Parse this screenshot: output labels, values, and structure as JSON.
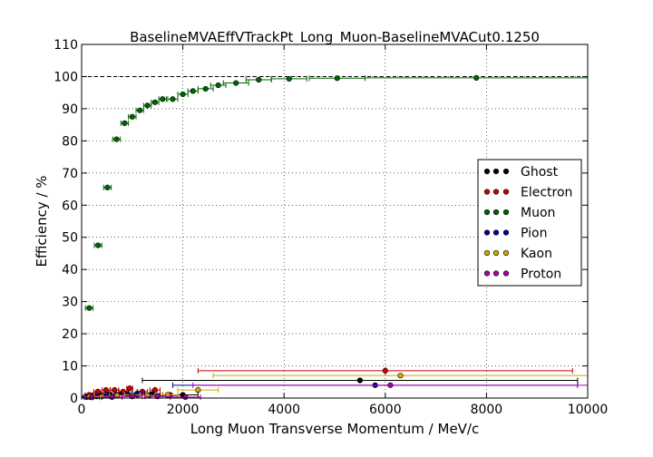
{
  "chart_data": {
    "type": "scatter",
    "title": "BaselineMVAEffVTrackPt_Long_Muon-BaselineMVACut0.1250",
    "xlabel": "Long Muon Transverse Momentum / MeV/c",
    "ylabel": "Efficiency / %",
    "xlim": [
      0,
      10000
    ],
    "ylim": [
      0,
      110
    ],
    "xticks": [
      0,
      2000,
      4000,
      6000,
      8000,
      10000
    ],
    "yticks": [
      0,
      10,
      20,
      30,
      40,
      50,
      60,
      70,
      80,
      90,
      100,
      110
    ],
    "grid": true,
    "reference_line": 100,
    "legend_position": "center-right",
    "series": [
      {
        "name": "Ghost",
        "color": "#000000",
        "points": [
          {
            "x": 75,
            "y": 0.5,
            "xerr": 75,
            "yerr": 0.3
          },
          {
            "x": 200,
            "y": 0.8,
            "xerr": 50,
            "yerr": 0.3
          },
          {
            "x": 350,
            "y": 1.0,
            "xerr": 75,
            "yerr": 0.3
          },
          {
            "x": 550,
            "y": 1.2,
            "xerr": 100,
            "yerr": 0.4
          },
          {
            "x": 800,
            "y": 1.5,
            "xerr": 125,
            "yerr": 0.5
          },
          {
            "x": 1100,
            "y": 1.0,
            "xerr": 150,
            "yerr": 0.5
          },
          {
            "x": 1400,
            "y": 1.3,
            "xerr": 150,
            "yerr": 0.6
          },
          {
            "x": 2000,
            "y": 1.0,
            "xerr": 300,
            "yerr": 0.6
          },
          {
            "x": 5500,
            "y": 5.5,
            "xerr": 4300,
            "yerr": 0.8
          }
        ]
      },
      {
        "name": "Electron",
        "color": "#cc0000",
        "points": [
          {
            "x": 150,
            "y": 1.0,
            "xerr": 75,
            "yerr": 0.5
          },
          {
            "x": 320,
            "y": 2.0,
            "xerr": 80,
            "yerr": 0.8
          },
          {
            "x": 480,
            "y": 2.5,
            "xerr": 80,
            "yerr": 0.8
          },
          {
            "x": 650,
            "y": 2.5,
            "xerr": 80,
            "yerr": 0.8
          },
          {
            "x": 820,
            "y": 2.0,
            "xerr": 80,
            "yerr": 0.8
          },
          {
            "x": 950,
            "y": 3.0,
            "xerr": 60,
            "yerr": 1.0
          },
          {
            "x": 1200,
            "y": 2.0,
            "xerr": 100,
            "yerr": 0.8
          },
          {
            "x": 1450,
            "y": 2.5,
            "xerr": 100,
            "yerr": 1.0
          },
          {
            "x": 1750,
            "y": 1.0,
            "xerr": 150,
            "yerr": 0.8
          },
          {
            "x": 6000,
            "y": 8.5,
            "xerr": 3700,
            "yerr": 1.2
          }
        ]
      },
      {
        "name": "Muon",
        "color": "#006600",
        "points": [
          {
            "x": 150,
            "y": 28.0,
            "xerr": 75,
            "yerr": 0.6
          },
          {
            "x": 325,
            "y": 47.5,
            "xerr": 75,
            "yerr": 0.7
          },
          {
            "x": 510,
            "y": 65.5,
            "xerr": 75,
            "yerr": 0.7
          },
          {
            "x": 690,
            "y": 80.5,
            "xerr": 75,
            "yerr": 0.6
          },
          {
            "x": 850,
            "y": 85.5,
            "xerr": 75,
            "yerr": 0.5
          },
          {
            "x": 1000,
            "y": 87.5,
            "xerr": 75,
            "yerr": 0.5
          },
          {
            "x": 1150,
            "y": 89.5,
            "xerr": 75,
            "yerr": 0.5
          },
          {
            "x": 1300,
            "y": 91.0,
            "xerr": 75,
            "yerr": 0.5
          },
          {
            "x": 1450,
            "y": 92.0,
            "xerr": 75,
            "yerr": 0.5
          },
          {
            "x": 1600,
            "y": 93.0,
            "xerr": 75,
            "yerr": 0.5
          },
          {
            "x": 1800,
            "y": 93.0,
            "xerr": 100,
            "yerr": 0.5
          },
          {
            "x": 2000,
            "y": 94.5,
            "xerr": 100,
            "yerr": 0.5
          },
          {
            "x": 2200,
            "y": 95.5,
            "xerr": 100,
            "yerr": 0.5
          },
          {
            "x": 2450,
            "y": 96.2,
            "xerr": 150,
            "yerr": 0.4
          },
          {
            "x": 2700,
            "y": 97.3,
            "xerr": 150,
            "yerr": 0.4
          },
          {
            "x": 3050,
            "y": 98.0,
            "xerr": 250,
            "yerr": 0.4
          },
          {
            "x": 3500,
            "y": 99.0,
            "xerr": 250,
            "yerr": 0.3
          },
          {
            "x": 4100,
            "y": 99.3,
            "xerr": 350,
            "yerr": 0.3
          },
          {
            "x": 5050,
            "y": 99.5,
            "xerr": 550,
            "yerr": 0.3
          },
          {
            "x": 7800,
            "y": 99.6,
            "xerr": 2200,
            "yerr": 0.2
          }
        ]
      },
      {
        "name": "Pion",
        "color": "#000099",
        "points": [
          {
            "x": 100,
            "y": 0.3,
            "xerr": 100,
            "yerr": 0.2
          },
          {
            "x": 300,
            "y": 0.5,
            "xerr": 100,
            "yerr": 0.3
          },
          {
            "x": 500,
            "y": 0.8,
            "xerr": 100,
            "yerr": 0.3
          },
          {
            "x": 700,
            "y": 1.0,
            "xerr": 100,
            "yerr": 0.4
          },
          {
            "x": 900,
            "y": 1.2,
            "xerr": 100,
            "yerr": 0.4
          },
          {
            "x": 1100,
            "y": 1.5,
            "xerr": 100,
            "yerr": 0.5
          },
          {
            "x": 1350,
            "y": 1.0,
            "xerr": 150,
            "yerr": 0.5
          },
          {
            "x": 1700,
            "y": 0.8,
            "xerr": 200,
            "yerr": 0.5
          },
          {
            "x": 5800,
            "y": 4.0,
            "xerr": 4000,
            "yerr": 0.6
          }
        ]
      },
      {
        "name": "Kaon",
        "color": "#ccaa00",
        "points": [
          {
            "x": 150,
            "y": 0.3,
            "xerr": 100,
            "yerr": 0.2
          },
          {
            "x": 400,
            "y": 0.5,
            "xerr": 150,
            "yerr": 0.3
          },
          {
            "x": 700,
            "y": 0.8,
            "xerr": 150,
            "yerr": 0.3
          },
          {
            "x": 1000,
            "y": 1.0,
            "xerr": 150,
            "yerr": 0.4
          },
          {
            "x": 1300,
            "y": 0.8,
            "xerr": 150,
            "yerr": 0.4
          },
          {
            "x": 1700,
            "y": 1.0,
            "xerr": 200,
            "yerr": 0.5
          },
          {
            "x": 2300,
            "y": 2.5,
            "xerr": 400,
            "yerr": 0.6
          },
          {
            "x": 6300,
            "y": 7.0,
            "xerr": 3700,
            "yerr": 0.8
          }
        ]
      },
      {
        "name": "Proton",
        "color": "#aa00aa",
        "points": [
          {
            "x": 200,
            "y": 0.2,
            "xerr": 150,
            "yerr": 0.2
          },
          {
            "x": 600,
            "y": 0.3,
            "xerr": 200,
            "yerr": 0.2
          },
          {
            "x": 1000,
            "y": 0.5,
            "xerr": 200,
            "yerr": 0.3
          },
          {
            "x": 1500,
            "y": 0.5,
            "xerr": 250,
            "yerr": 0.3
          },
          {
            "x": 2050,
            "y": 0.3,
            "xerr": 300,
            "yerr": 0.3
          },
          {
            "x": 6100,
            "y": 4.0,
            "xerr": 3900,
            "yerr": 0.5
          }
        ]
      }
    ]
  }
}
